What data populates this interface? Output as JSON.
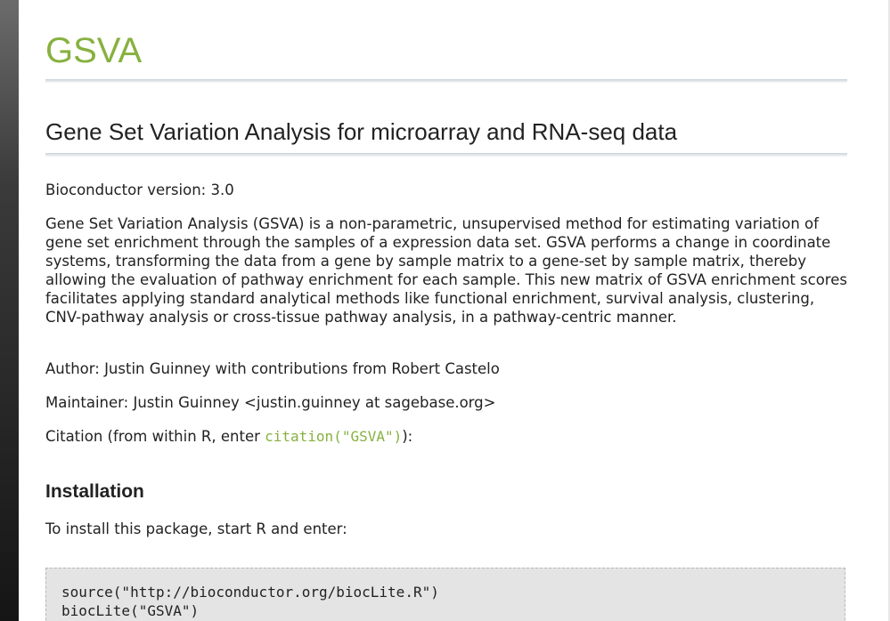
{
  "package": {
    "title": "GSVA",
    "subtitle": "Gene Set Variation Analysis for microarray and RNA-seq data"
  },
  "info": {
    "version": "Bioconductor version: 3.0",
    "description": "Gene Set Variation Analysis (GSVA) is a non-parametric, unsupervised method for estimating variation of gene set enrichment through the samples of a expression data set. GSVA performs a change in coordinate systems, transforming the data from a gene by sample matrix to a gene-set by sample matrix, thereby allowing the evaluation of pathway enrichment for each sample. This new matrix of GSVA enrichment scores facilitates applying standard analytical methods like functional enrichment, survival analysis, clustering, CNV-pathway analysis or cross-tissue pathway analysis, in a pathway-centric manner.",
    "author": "Author: Justin Guinney with contributions from Robert Castelo",
    "maintainer": "Maintainer: Justin Guinney <justin.guinney at sagebase.org>",
    "citation_prefix": "Citation (from within R, enter ",
    "citation_code": "citation(\"GSVA\")",
    "citation_suffix": "):"
  },
  "installation": {
    "heading": "Installation",
    "instruction": "To install this package, start R and enter:",
    "code_lines": [
      "source(\"http://bioconductor.org/biocLite.R\")",
      "biocLite(\"GSVA\")"
    ]
  },
  "colors": {
    "accent": "#87b13f",
    "text": "#222222",
    "code_background": "#e4e4e4"
  }
}
